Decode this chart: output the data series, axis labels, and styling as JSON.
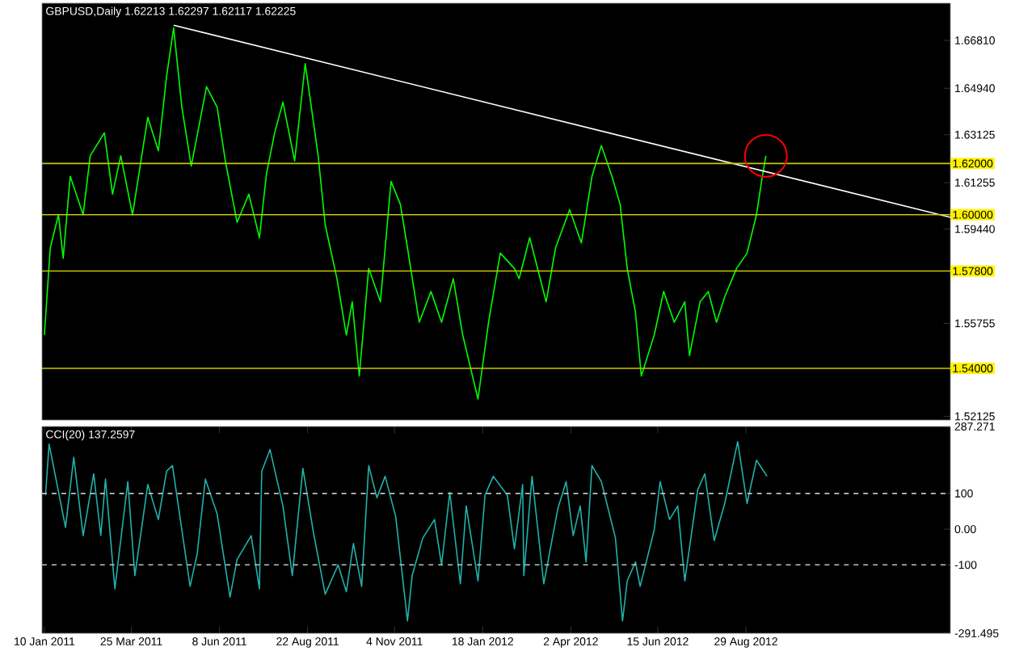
{
  "chart_data": [
    {
      "type": "line",
      "title": "GBPUSD,Daily  1.62213 1.62297 1.62117 1.62225",
      "xlim": [
        "2011-01-08",
        "2013-02-19"
      ],
      "ylim": [
        1.5198,
        1.6826
      ],
      "yticks": [
        {
          "value": 1.6681,
          "label": "1.66810"
        },
        {
          "value": 1.6494,
          "label": "1.64940"
        },
        {
          "value": 1.63125,
          "label": "1.63125"
        },
        {
          "value": 1.61255,
          "label": "1.61255"
        },
        {
          "value": 1.5944,
          "label": "1.59440"
        },
        {
          "value": 1.55755,
          "label": "1.55755"
        },
        {
          "value": 1.52125,
          "label": "1.52125"
        }
      ],
      "tick_labels": "y",
      "series": [
        {
          "color": "#00ff00",
          "x": [
            "2011-01-10",
            "2011-01-15",
            "2011-01-22",
            "2011-01-26",
            "2011-02-01",
            "2011-02-12",
            "2011-02-18",
            "2011-03-02",
            "2011-03-09",
            "2011-03-16",
            "2011-03-26",
            "2011-04-08",
            "2011-04-17",
            "2011-04-24",
            "2011-04-30",
            "2011-05-07",
            "2011-05-15",
            "2011-05-28",
            "2011-06-06",
            "2011-06-13",
            "2011-06-23",
            "2011-07-03",
            "2011-07-12",
            "2011-07-18",
            "2011-07-25",
            "2011-08-01",
            "2011-08-11",
            "2011-08-20",
            "2011-08-31",
            "2011-09-06",
            "2011-09-16",
            "2011-09-24",
            "2011-09-29",
            "2011-10-05",
            "2011-10-13",
            "2011-10-23",
            "2011-11-01",
            "2011-11-09",
            "2011-11-15",
            "2011-11-25",
            "2011-12-05",
            "2011-12-14",
            "2011-12-24",
            "2012-01-01",
            "2012-01-14",
            "2012-01-23",
            "2012-02-02",
            "2012-02-14",
            "2012-02-18",
            "2012-02-27",
            "2012-03-12",
            "2012-03-20",
            "2012-04-01",
            "2012-04-11",
            "2012-04-20",
            "2012-04-28",
            "2012-05-07",
            "2012-05-14",
            "2012-05-20",
            "2012-05-27",
            "2012-06-01",
            "2012-06-12",
            "2012-06-20",
            "2012-06-29",
            "2012-07-08",
            "2012-07-12",
            "2012-07-21",
            "2012-07-28",
            "2012-08-04",
            "2012-08-11",
            "2012-08-21",
            "2012-08-30",
            "2012-09-07",
            "2012-09-12",
            "2012-09-15"
          ],
          "values": [
            1.553,
            1.587,
            1.6,
            1.583,
            1.615,
            1.6,
            1.623,
            1.632,
            1.608,
            1.623,
            1.6,
            1.638,
            1.625,
            1.654,
            1.673,
            1.642,
            1.619,
            1.65,
            1.642,
            1.621,
            1.597,
            1.608,
            1.591,
            1.616,
            1.632,
            1.644,
            1.621,
            1.659,
            1.623,
            1.596,
            1.575,
            1.553,
            1.566,
            1.537,
            1.579,
            1.566,
            1.613,
            1.604,
            1.587,
            1.558,
            1.57,
            1.558,
            1.575,
            1.553,
            1.528,
            1.558,
            1.585,
            1.579,
            1.575,
            1.591,
            1.566,
            1.587,
            1.602,
            1.589,
            1.615,
            1.627,
            1.615,
            1.604,
            1.579,
            1.562,
            1.537,
            1.553,
            1.57,
            1.558,
            1.566,
            1.545,
            1.566,
            1.57,
            1.558,
            1.568,
            1.579,
            1.585,
            1.6,
            1.615,
            1.623
          ]
        },
        {
          "color": "#ffffff",
          "x": [
            "2011-04-30",
            "2013-02-19"
          ],
          "values": [
            1.674,
            1.599
          ]
        }
      ],
      "ref_lines": [
        {
          "axis": "y",
          "value": 1.62,
          "label": "1.62000",
          "color": "#c8c800"
        },
        {
          "axis": "y",
          "value": 1.6,
          "label": "1.60000",
          "color": "#c8c800"
        },
        {
          "axis": "y",
          "value": 1.578,
          "label": "1.57800",
          "color": "#c8c800"
        },
        {
          "axis": "y",
          "value": 1.54,
          "label": "1.54000",
          "color": "#c8c800"
        }
      ]
    },
    {
      "type": "line",
      "title": "CCI(20) 137.2597",
      "xlim": [
        "2011-01-08",
        "2013-02-19"
      ],
      "ylim": [
        -291.495,
        287.271
      ],
      "xticks": [
        {
          "value": "2011-01-10",
          "label": "10 Jan 2011"
        },
        {
          "value": "2011-03-25",
          "label": "25 Mar 2011"
        },
        {
          "value": "2011-06-08",
          "label": "8 Jun 2011"
        },
        {
          "value": "2011-08-22",
          "label": "22 Aug 2011"
        },
        {
          "value": "2011-11-04",
          "label": "4 Nov 2011"
        },
        {
          "value": "2012-01-18",
          "label": "18 Jan 2012"
        },
        {
          "value": "2012-04-02",
          "label": "2 Apr 2012"
        },
        {
          "value": "2012-06-15",
          "label": "15 Jun 2012"
        },
        {
          "value": "2012-08-29",
          "label": "29 Aug 2012"
        }
      ],
      "yticks": [
        287.271,
        100,
        {
          "value": 0,
          "label": "0.00"
        },
        -100,
        -291.495
      ],
      "series": [
        {
          "color": "#20b2aa",
          "x": [
            "2011-01-11",
            "2011-01-14",
            "2011-01-19",
            "2011-01-28",
            "2011-02-04",
            "2011-02-12",
            "2011-02-21",
            "2011-02-27",
            "2011-03-03",
            "2011-03-11",
            "2011-03-22",
            "2011-03-28",
            "2011-04-08",
            "2011-04-17",
            "2011-04-24",
            "2011-04-29",
            "2011-05-14",
            "2011-05-20",
            "2011-05-27",
            "2011-06-06",
            "2011-06-17",
            "2011-06-23",
            "2011-07-05",
            "2011-07-12",
            "2011-07-14",
            "2011-07-21",
            "2011-08-01",
            "2011-08-09",
            "2011-08-18",
            "2011-08-27",
            "2011-09-06",
            "2011-09-17",
            "2011-09-24",
            "2011-09-30",
            "2011-10-07",
            "2011-10-13",
            "2011-10-20",
            "2011-10-27",
            "2011-11-05",
            "2011-11-15",
            "2011-11-19",
            "2011-11-28",
            "2011-12-08",
            "2011-12-14",
            "2011-12-21",
            "2011-12-30",
            "2012-01-04",
            "2012-01-14",
            "2012-01-20",
            "2012-01-27",
            "2012-02-08",
            "2012-02-14",
            "2012-02-21",
            "2012-02-22",
            "2012-02-29",
            "2012-03-10",
            "2012-03-22",
            "2012-03-29",
            "2012-04-04",
            "2012-04-10",
            "2012-04-15",
            "2012-04-20",
            "2012-04-28",
            "2012-05-10",
            "2012-05-16",
            "2012-05-20",
            "2012-05-27",
            "2012-05-31",
            "2012-06-12",
            "2012-06-17",
            "2012-06-25",
            "2012-07-02",
            "2012-07-08",
            "2012-07-19",
            "2012-07-25",
            "2012-08-02",
            "2012-08-11",
            "2012-08-22",
            "2012-08-30",
            "2012-09-07",
            "2012-09-16"
          ],
          "values": [
            95,
            238,
            155,
            5,
            201,
            -18,
            155,
            -18,
            140,
            -167,
            133,
            -130,
            125,
            27,
            162,
            178,
            -160,
            -70,
            140,
            43,
            -190,
            -85,
            -18,
            -167,
            162,
            223,
            65,
            -130,
            170,
            -10,
            -182,
            -100,
            -175,
            -40,
            -160,
            178,
            88,
            148,
            35,
            -257,
            -130,
            -25,
            27,
            -100,
            103,
            -153,
            65,
            -145,
            95,
            148,
            95,
            -55,
            125,
            -130,
            148,
            -153,
            58,
            133,
            -18,
            65,
            -92,
            178,
            133,
            -25,
            -257,
            -145,
            -92,
            -160,
            -2,
            133,
            27,
            65,
            -145,
            110,
            155,
            -32,
            72,
            245,
            72,
            193,
            148
          ]
        }
      ],
      "ref_lines": [
        {
          "axis": "y",
          "value": 100,
          "color": "#c0c0c0",
          "line_style": "dashed"
        },
        {
          "axis": "y",
          "value": -100,
          "color": "#c0c0c0",
          "line_style": "dashed"
        }
      ]
    }
  ]
}
